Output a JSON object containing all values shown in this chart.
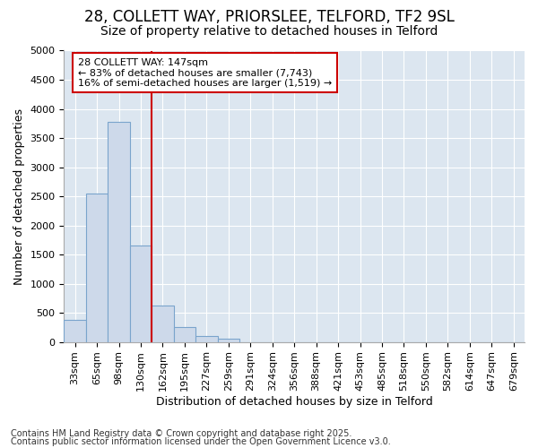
{
  "title_line1": "28, COLLETT WAY, PRIORSLEE, TELFORD, TF2 9SL",
  "title_line2": "Size of property relative to detached houses in Telford",
  "xlabel": "Distribution of detached houses by size in Telford",
  "ylabel": "Number of detached properties",
  "categories": [
    "33sqm",
    "65sqm",
    "98sqm",
    "130sqm",
    "162sqm",
    "195sqm",
    "227sqm",
    "259sqm",
    "291sqm",
    "324sqm",
    "356sqm",
    "388sqm",
    "421sqm",
    "453sqm",
    "485sqm",
    "518sqm",
    "550sqm",
    "582sqm",
    "614sqm",
    "647sqm",
    "679sqm"
  ],
  "values": [
    380,
    2550,
    3780,
    1650,
    620,
    250,
    100,
    50,
    0,
    0,
    0,
    0,
    0,
    0,
    0,
    0,
    0,
    0,
    0,
    0,
    0
  ],
  "bar_color": "#cdd9ea",
  "bar_edgecolor": "#7aa4cc",
  "vline_color": "#cc0000",
  "vline_index": 4,
  "ylim": [
    0,
    5000
  ],
  "yticks": [
    0,
    500,
    1000,
    1500,
    2000,
    2500,
    3000,
    3500,
    4000,
    4500,
    5000
  ],
  "annotation_text": "28 COLLETT WAY: 147sqm\n← 83% of detached houses are smaller (7,743)\n16% of semi-detached houses are larger (1,519) →",
  "annotation_box_color": "#ffffff",
  "annotation_box_edgecolor": "#cc0000",
  "footnote1": "Contains HM Land Registry data © Crown copyright and database right 2025.",
  "footnote2": "Contains public sector information licensed under the Open Government Licence v3.0.",
  "fig_bg_color": "#ffffff",
  "plot_bg_color": "#dce6f0",
  "grid_color": "#ffffff",
  "title_fontsize": 12,
  "subtitle_fontsize": 10,
  "tick_fontsize": 8,
  "label_fontsize": 9,
  "footnote_fontsize": 7,
  "annot_fontsize": 8
}
